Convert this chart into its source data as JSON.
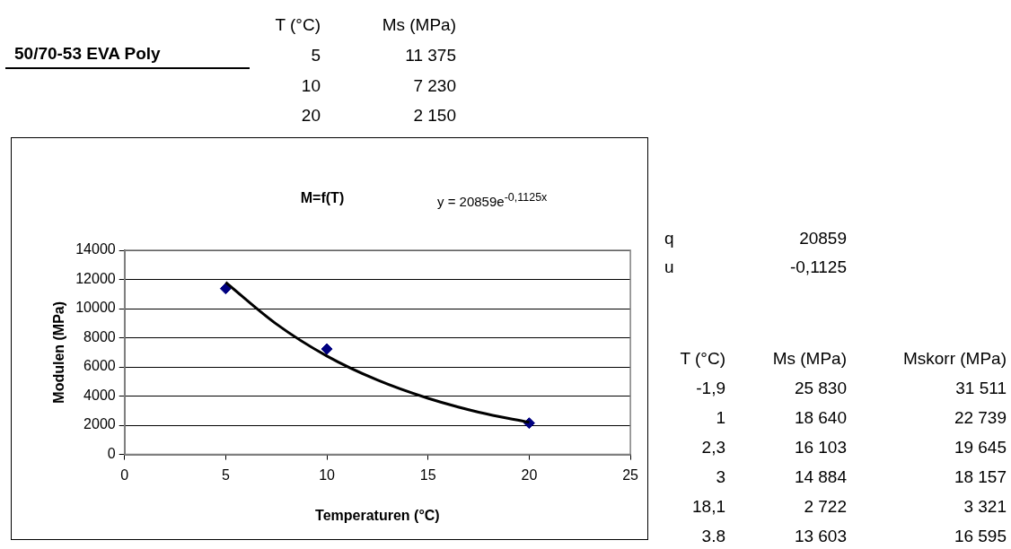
{
  "chart_data": {
    "type": "scatter",
    "title": "M=f(T)",
    "subtitle": "50/70-53 EVA Poly",
    "xlabel": "Temperaturen (°C)",
    "ylabel": "Modulen (MPa)",
    "annotations": [
      "y = 20859e$^{-0,1125x}$",
      "T (°C)",
      "Ms (MPa)",
      "5",
      "11 375",
      "10",
      "7 230",
      "20",
      "2 150",
      "q",
      "20859",
      "u",
      "-0,1125",
      "T (°C)",
      "Ms (MPa)",
      "Mskorr (MPa)",
      "-1,9",
      "25 830",
      "31 511",
      "1",
      "18 640",
      "22 739",
      "2,3",
      "16 103",
      "19 645",
      "3",
      "14 884",
      "18 157",
      "18,1",
      "2 722",
      "3 321",
      "3.8",
      "13 603",
      "16 595"
    ],
    "series": [
      {
        "color": "#000080",
        "marker": "diamond",
        "x": [
          5,
          10,
          20
        ],
        "values": [
          11375,
          7230,
          2150
        ]
      },
      {
        "type": "line",
        "color": "#000000",
        "marker": "none",
        "x": [
          5,
          7.5,
          10,
          12.5,
          15,
          17.5,
          20
        ],
        "values": [
          11800,
          8950,
          6750,
          5100,
          3850,
          2900,
          2200
        ]
      }
    ],
    "xlim": [
      0,
      25
    ],
    "xticks": [
      0,
      5,
      10,
      15,
      20,
      25
    ],
    "ylim": [
      0,
      14000
    ],
    "yticks": [
      0,
      2000,
      4000,
      6000,
      8000,
      10000,
      12000,
      14000
    ],
    "grid": "y",
    "legend": false
  }
}
